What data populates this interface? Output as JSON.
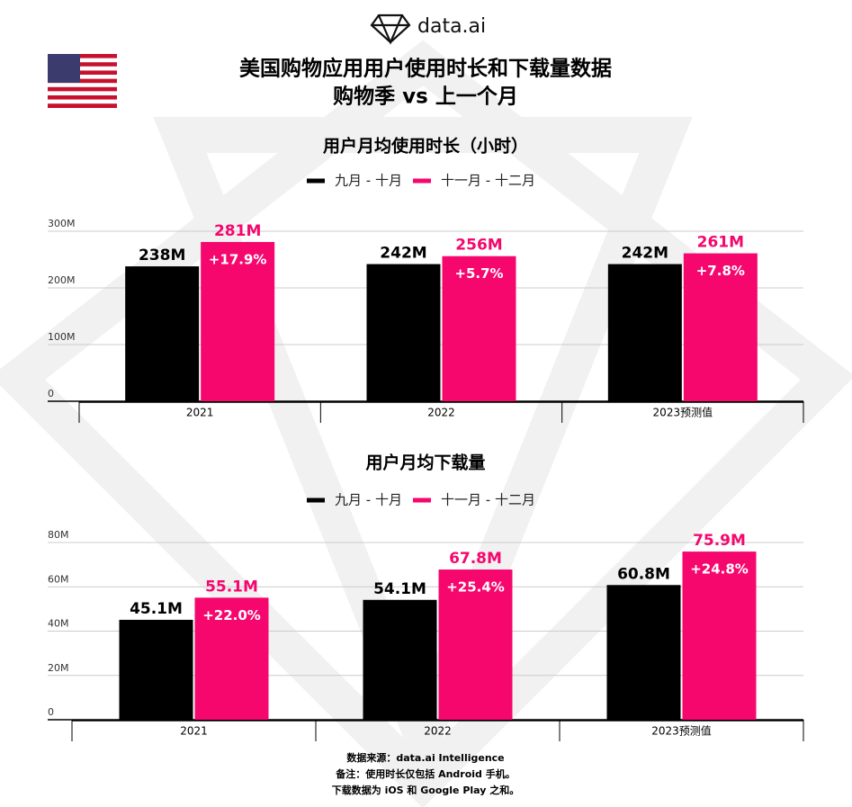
{
  "header": {
    "logo": "data.ai",
    "title_lines": [
      "美国购物应用用户使用时长和下载量数据",
      "购物季 vs 上一个月"
    ]
  },
  "chart_data": [
    {
      "type": "bar",
      "title": "用户月均使用时长（小时）",
      "categories": [
        "2021",
        "2022",
        "2023预测值"
      ],
      "series": [
        {
          "name": "九月 - 十月",
          "color": "#000000",
          "values": [
            238000000,
            242000000,
            242000000
          ],
          "value_labels": [
            "238M",
            "242M",
            "242M"
          ]
        },
        {
          "name": "十一月 - 十二月",
          "color": "#f5076e",
          "values": [
            281000000,
            256000000,
            261000000
          ],
          "value_labels": [
            "281M",
            "256M",
            "261M"
          ],
          "annotations": [
            "+17.9%",
            "+5.7%",
            "+7.8%"
          ]
        }
      ],
      "ylim": [
        0,
        300000000
      ],
      "yticks": [
        0,
        {
          "value": 100000000,
          "label": "100M"
        },
        {
          "value": 200000000,
          "label": "200M"
        },
        {
          "value": 300000000,
          "label": "300M"
        }
      ],
      "grid": true
    },
    {
      "type": "bar",
      "title": "用户月均下载量",
      "categories": [
        "2021",
        "2022",
        "2023预测值"
      ],
      "series": [
        {
          "name": "九月 - 十月",
          "color": "#000000",
          "values": [
            45100000,
            54100000,
            60800000
          ],
          "value_labels": [
            "45.1M",
            "54.1M",
            "60.8M"
          ]
        },
        {
          "name": "十一月 - 十二月",
          "color": "#f5076e",
          "values": [
            55100000,
            67800000,
            75900000
          ],
          "value_labels": [
            "55.1M",
            "67.8M",
            "75.9M"
          ],
          "annotations": [
            "+22.0%",
            "+25.4%",
            "+24.8%"
          ]
        }
      ],
      "ylim": [
        0,
        80000000
      ],
      "yticks": [
        0,
        {
          "value": 20000000,
          "label": "20M"
        },
        {
          "value": 40000000,
          "label": "40M"
        },
        {
          "value": 60000000,
          "label": "60M"
        },
        {
          "value": 80000000,
          "label": "80M"
        }
      ],
      "grid": true
    }
  ],
  "footer": {
    "lines": [
      "数据来源：data.ai Intelligence",
      "备注：使用时长仅包括 Android 手机。",
      "下载数据为 iOS 和 Google Play 之和。"
    ]
  }
}
